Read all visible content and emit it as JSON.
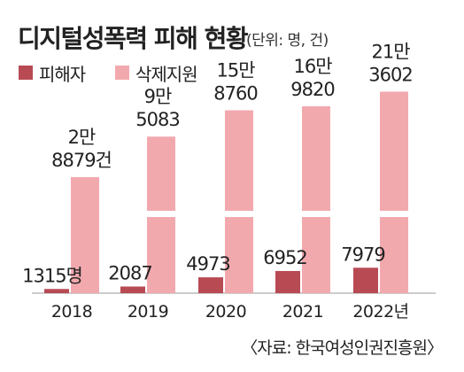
{
  "header": {
    "title": "디지털성폭력 피해 현황",
    "unit": "(단위: 명, 건)"
  },
  "source": "〈자료: 한국여성인권진흥원〉",
  "colors": {
    "victims": "#b84a54",
    "deletion": "#f2a9ae",
    "axis": "#999999",
    "text": "#222222"
  },
  "chart_data": {
    "type": "bar",
    "title": "디지털성폭력 피해 현황",
    "subtitle": "(단위: 명, 건)",
    "categories": [
      "2018",
      "2019",
      "2020",
      "2021",
      "2022"
    ],
    "category_labels": [
      "2018",
      "2019",
      "2020",
      "2021",
      "2022년"
    ],
    "series": [
      {
        "name": "피해자",
        "color": "#b84a54",
        "values": [
          1315,
          2087,
          4973,
          6952,
          7979
        ],
        "labels": [
          [
            "1315명"
          ],
          [
            "2087"
          ],
          [
            "4973"
          ],
          [
            "6952"
          ],
          [
            "7979"
          ]
        ]
      },
      {
        "name": "삭제지원",
        "color": "#f2a9ae",
        "values": [
          28879,
          95083,
          158760,
          169820,
          213602
        ],
        "labels": [
          [
            "2만",
            "8879건"
          ],
          [
            "9만",
            "5083"
          ],
          [
            "15만",
            "8760"
          ],
          [
            "16만",
            "9820"
          ],
          [
            "21만",
            "3602"
          ]
        ]
      }
    ],
    "axis_break": true,
    "legend_position": "top-left",
    "grid": false
  }
}
